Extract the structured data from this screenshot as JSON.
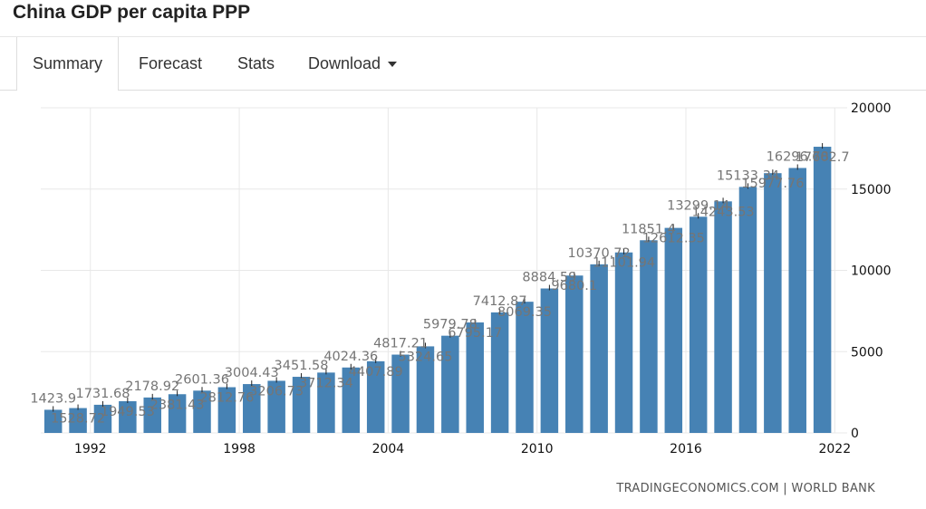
{
  "header": {
    "title": "China GDP per capita PPP"
  },
  "tabs": [
    {
      "label": "Summary",
      "active": true
    },
    {
      "label": "Forecast",
      "active": false
    },
    {
      "label": "Stats",
      "active": false
    },
    {
      "label": "Download",
      "active": false,
      "dropdown": true
    }
  ],
  "colors": {
    "bar": "#4682b4",
    "grid": "#e8e8e8",
    "annotation": "#757575"
  },
  "source": "TRADINGECONOMICS.COM | WORLD BANK",
  "chart_data": {
    "type": "bar",
    "title": "",
    "xlabel": "",
    "ylabel": "",
    "ylim": [
      0,
      20000
    ],
    "yaxis_position": "right",
    "grid": true,
    "x_ticks": [
      "1992",
      "1998",
      "2004",
      "2010",
      "2016",
      "2022"
    ],
    "y_ticks": [
      "0",
      "5000",
      "10000",
      "15000",
      "20000"
    ],
    "categories": [
      1990,
      1991,
      1992,
      1993,
      1994,
      1995,
      1996,
      1997,
      1998,
      1999,
      2000,
      2001,
      2002,
      2003,
      2004,
      2005,
      2006,
      2007,
      2008,
      2009,
      2010,
      2011,
      2012,
      2013,
      2014,
      2015,
      2016,
      2017,
      2018,
      2019,
      2020,
      2021
    ],
    "values": [
      1423.9,
      1528.72,
      1731.68,
      1949.53,
      2178.92,
      2381.43,
      2601.36,
      2812.76,
      3004.43,
      3206.73,
      3451.58,
      3712.34,
      4024.36,
      4407.89,
      4817.21,
      5324.65,
      5979.78,
      6795.17,
      7412.87,
      8069.35,
      8884.59,
      9680.1,
      10370.72,
      11101.94,
      11851.4,
      12612.35,
      13299.14,
      14243.53,
      15133.34,
      15977.76,
      16296.78,
      17602.7
    ],
    "data_labels": [
      "1423.9",
      "1528.72",
      "1731.68",
      "1949.53",
      "2178.92",
      "2381.43",
      "2601.36",
      "2812.76",
      "3004.43",
      "3206.73",
      "3451.58",
      "3712.34",
      "4024.36",
      "4407.89",
      "4817.21",
      "5324.65",
      "5979.78",
      "6795.17",
      "7412.87",
      "8069.35",
      "8884.59",
      "9680.1",
      "10370.72",
      "11101.94",
      "11851.4",
      "12612.35",
      "13299.14",
      "14243.53",
      "15133.34",
      "15977.76",
      "16296.78",
      "17602.7"
    ]
  }
}
